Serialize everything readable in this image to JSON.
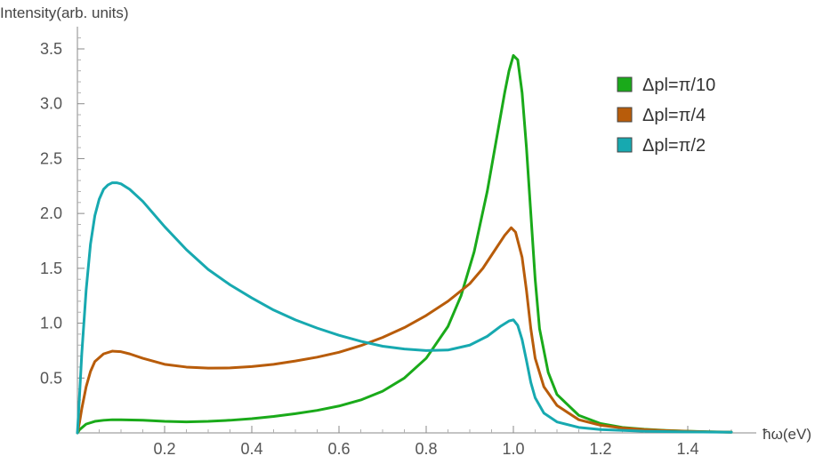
{
  "chart_data": {
    "type": "line",
    "ylabel": "Intensity(arb. units)",
    "xlabel": "ħω(eV)",
    "xlim": [
      0,
      1.5
    ],
    "ylim": [
      0,
      3.6
    ],
    "x_ticks": [
      {
        "value": 0.2,
        "label": "0.2"
      },
      {
        "value": 0.4,
        "label": "0.4"
      },
      {
        "value": 0.6,
        "label": "0.6"
      },
      {
        "value": 0.8,
        "label": "0.8"
      },
      {
        "value": 1.0,
        "label": "1.0"
      },
      {
        "value": 1.2,
        "label": "1.2"
      },
      {
        "value": 1.4,
        "label": "1.4"
      }
    ],
    "y_ticks": [
      {
        "value": 0.5,
        "label": "0.5"
      },
      {
        "value": 1.0,
        "label": "1.0"
      },
      {
        "value": 1.5,
        "label": "1.5"
      },
      {
        "value": 2.0,
        "label": "2.0"
      },
      {
        "value": 2.5,
        "label": "2.5"
      },
      {
        "value": 3.0,
        "label": "3.0"
      },
      {
        "value": 3.5,
        "label": "3.5"
      }
    ],
    "grid": false,
    "legend_position": "top-right",
    "series": [
      {
        "name": "Δpl=π/10",
        "color": "#1aaa1a",
        "points": [
          [
            0,
            0
          ],
          [
            0.005,
            0.03
          ],
          [
            0.02,
            0.08
          ],
          [
            0.04,
            0.105
          ],
          [
            0.06,
            0.115
          ],
          [
            0.08,
            0.12
          ],
          [
            0.1,
            0.12
          ],
          [
            0.15,
            0.115
          ],
          [
            0.2,
            0.105
          ],
          [
            0.25,
            0.1
          ],
          [
            0.3,
            0.105
          ],
          [
            0.35,
            0.115
          ],
          [
            0.4,
            0.13
          ],
          [
            0.45,
            0.15
          ],
          [
            0.5,
            0.175
          ],
          [
            0.55,
            0.205
          ],
          [
            0.6,
            0.245
          ],
          [
            0.65,
            0.3
          ],
          [
            0.7,
            0.38
          ],
          [
            0.75,
            0.5
          ],
          [
            0.8,
            0.68
          ],
          [
            0.85,
            0.97
          ],
          [
            0.88,
            1.25
          ],
          [
            0.91,
            1.65
          ],
          [
            0.94,
            2.2
          ],
          [
            0.96,
            2.65
          ],
          [
            0.98,
            3.1
          ],
          [
            0.99,
            3.3
          ],
          [
            1.0,
            3.44
          ],
          [
            1.01,
            3.4
          ],
          [
            1.02,
            3.1
          ],
          [
            1.03,
            2.6
          ],
          [
            1.04,
            2.0
          ],
          [
            1.05,
            1.4
          ],
          [
            1.06,
            0.95
          ],
          [
            1.08,
            0.55
          ],
          [
            1.1,
            0.35
          ],
          [
            1.15,
            0.16
          ],
          [
            1.2,
            0.085
          ],
          [
            1.25,
            0.05
          ],
          [
            1.3,
            0.033
          ],
          [
            1.35,
            0.022
          ],
          [
            1.4,
            0.015
          ],
          [
            1.45,
            0.01
          ],
          [
            1.5,
            0.007
          ]
        ]
      },
      {
        "name": "Δpl=π/4",
        "color": "#b85c0a",
        "points": [
          [
            0,
            0
          ],
          [
            0.005,
            0.1
          ],
          [
            0.01,
            0.22
          ],
          [
            0.02,
            0.42
          ],
          [
            0.03,
            0.56
          ],
          [
            0.04,
            0.65
          ],
          [
            0.06,
            0.72
          ],
          [
            0.08,
            0.745
          ],
          [
            0.1,
            0.74
          ],
          [
            0.12,
            0.72
          ],
          [
            0.15,
            0.68
          ],
          [
            0.2,
            0.625
          ],
          [
            0.25,
            0.6
          ],
          [
            0.3,
            0.59
          ],
          [
            0.35,
            0.592
          ],
          [
            0.4,
            0.605
          ],
          [
            0.45,
            0.625
          ],
          [
            0.5,
            0.655
          ],
          [
            0.55,
            0.69
          ],
          [
            0.6,
            0.735
          ],
          [
            0.65,
            0.795
          ],
          [
            0.7,
            0.87
          ],
          [
            0.75,
            0.96
          ],
          [
            0.8,
            1.07
          ],
          [
            0.85,
            1.2
          ],
          [
            0.9,
            1.36
          ],
          [
            0.93,
            1.5
          ],
          [
            0.96,
            1.68
          ],
          [
            0.98,
            1.8
          ],
          [
            0.995,
            1.87
          ],
          [
            1.005,
            1.83
          ],
          [
            1.02,
            1.6
          ],
          [
            1.03,
            1.3
          ],
          [
            1.04,
            0.95
          ],
          [
            1.05,
            0.68
          ],
          [
            1.07,
            0.42
          ],
          [
            1.1,
            0.25
          ],
          [
            1.15,
            0.12
          ],
          [
            1.2,
            0.07
          ],
          [
            1.25,
            0.045
          ],
          [
            1.3,
            0.03
          ],
          [
            1.35,
            0.02
          ],
          [
            1.4,
            0.014
          ],
          [
            1.45,
            0.009
          ],
          [
            1.5,
            0.006
          ]
        ]
      },
      {
        "name": "Δpl=π/2",
        "color": "#17a9b0",
        "points": [
          [
            0,
            0
          ],
          [
            0.005,
            0.35
          ],
          [
            0.01,
            0.72
          ],
          [
            0.02,
            1.3
          ],
          [
            0.03,
            1.72
          ],
          [
            0.04,
            1.98
          ],
          [
            0.05,
            2.13
          ],
          [
            0.06,
            2.22
          ],
          [
            0.07,
            2.26
          ],
          [
            0.08,
            2.28
          ],
          [
            0.09,
            2.28
          ],
          [
            0.1,
            2.27
          ],
          [
            0.12,
            2.22
          ],
          [
            0.15,
            2.11
          ],
          [
            0.2,
            1.88
          ],
          [
            0.25,
            1.67
          ],
          [
            0.3,
            1.49
          ],
          [
            0.35,
            1.35
          ],
          [
            0.4,
            1.23
          ],
          [
            0.45,
            1.12
          ],
          [
            0.5,
            1.03
          ],
          [
            0.55,
            0.955
          ],
          [
            0.6,
            0.89
          ],
          [
            0.65,
            0.835
          ],
          [
            0.7,
            0.79
          ],
          [
            0.75,
            0.765
          ],
          [
            0.8,
            0.75
          ],
          [
            0.85,
            0.755
          ],
          [
            0.9,
            0.8
          ],
          [
            0.94,
            0.88
          ],
          [
            0.97,
            0.97
          ],
          [
            0.99,
            1.02
          ],
          [
            1.0,
            1.03
          ],
          [
            1.01,
            0.98
          ],
          [
            1.02,
            0.85
          ],
          [
            1.03,
            0.66
          ],
          [
            1.04,
            0.46
          ],
          [
            1.05,
            0.32
          ],
          [
            1.07,
            0.18
          ],
          [
            1.1,
            0.1
          ],
          [
            1.15,
            0.05
          ],
          [
            1.2,
            0.03
          ],
          [
            1.3,
            0.015
          ],
          [
            1.4,
            0.009
          ],
          [
            1.5,
            0.006
          ]
        ]
      }
    ]
  }
}
